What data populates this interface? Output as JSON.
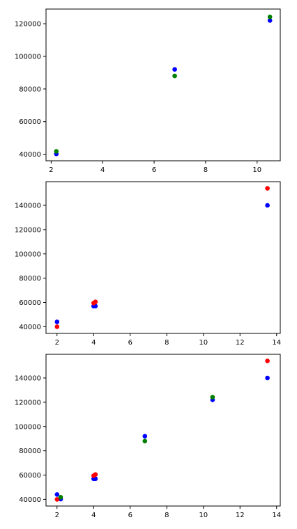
{
  "chart_data": [
    {
      "type": "scatter",
      "xlim": [
        1.8,
        10.9
      ],
      "ylim": [
        36000,
        129000
      ],
      "xticks": [
        2,
        4,
        6,
        8,
        10
      ],
      "yticks": [
        40000,
        60000,
        80000,
        100000,
        120000
      ],
      "xtick_labels": [
        "2",
        "4",
        "6",
        "8",
        "10"
      ],
      "ytick_labels": [
        "40000",
        "60000",
        "80000",
        "100000",
        "120000"
      ],
      "series": [
        {
          "color": "#0000ff",
          "points": [
            [
              2.2,
              40200
            ],
            [
              6.8,
              92000
            ],
            [
              10.5,
              122000
            ]
          ]
        },
        {
          "color": "#008000",
          "points": [
            [
              2.2,
              41800
            ],
            [
              6.8,
              88000
            ],
            [
              10.5,
              124200
            ]
          ]
        }
      ]
    },
    {
      "type": "scatter",
      "xlim": [
        1.4,
        14.2
      ],
      "ylim": [
        34500,
        159500
      ],
      "xticks": [
        2,
        4,
        6,
        8,
        10,
        12,
        14
      ],
      "yticks": [
        40000,
        60000,
        80000,
        100000,
        120000,
        140000
      ],
      "xtick_labels": [
        "2",
        "4",
        "6",
        "8",
        "10",
        "12",
        "14"
      ],
      "ytick_labels": [
        "40000",
        "60000",
        "80000",
        "100000",
        "120000",
        "140000"
      ],
      "series": [
        {
          "color": "#0000ff",
          "points": [
            [
              2.0,
              44000
            ],
            [
              4.0,
              57000
            ],
            [
              4.1,
              57000
            ],
            [
              13.5,
              140000
            ]
          ]
        },
        {
          "color": "#ff0000",
          "points": [
            [
              2.0,
              40000
            ],
            [
              4.0,
              59500
            ],
            [
              4.1,
              60500
            ],
            [
              13.5,
              154000
            ]
          ]
        }
      ]
    },
    {
      "type": "scatter",
      "xlim": [
        1.4,
        14.2
      ],
      "ylim": [
        34500,
        159500
      ],
      "xticks": [
        2,
        4,
        6,
        8,
        10,
        12,
        14
      ],
      "yticks": [
        40000,
        60000,
        80000,
        100000,
        120000,
        140000
      ],
      "xtick_labels": [
        "2",
        "4",
        "6",
        "8",
        "10",
        "12",
        "14"
      ],
      "ytick_labels": [
        "40000",
        "60000",
        "80000",
        "100000",
        "120000",
        "140000"
      ],
      "series": [
        {
          "color": "#0000ff",
          "points": [
            [
              2.0,
              44000
            ],
            [
              4.0,
              57000
            ],
            [
              4.1,
              57000
            ],
            [
              13.5,
              140000
            ],
            [
              2.2,
              40200
            ],
            [
              6.8,
              92000
            ],
            [
              10.5,
              122000
            ]
          ]
        },
        {
          "color": "#ff0000",
          "points": [
            [
              2.0,
              40000
            ],
            [
              4.0,
              59500
            ],
            [
              4.1,
              60500
            ],
            [
              13.5,
              154000
            ]
          ]
        },
        {
          "color": "#008000",
          "points": [
            [
              2.2,
              41800
            ],
            [
              6.8,
              88000
            ],
            [
              10.5,
              124200
            ]
          ]
        }
      ]
    }
  ]
}
